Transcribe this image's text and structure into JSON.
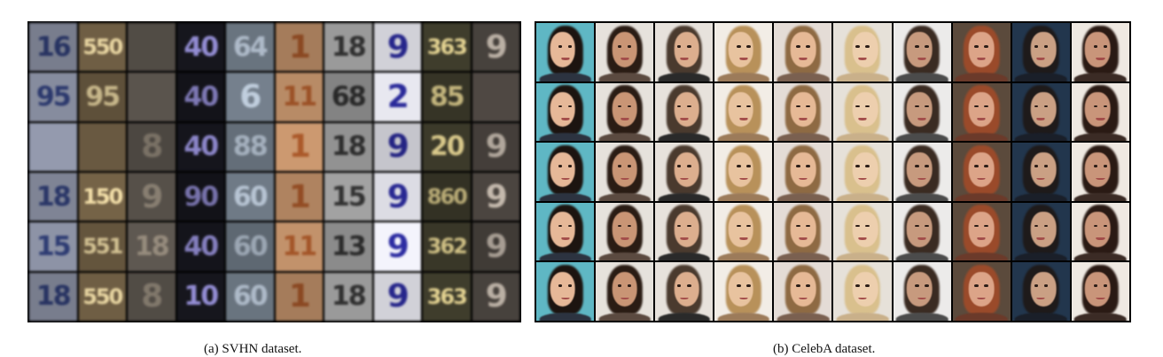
{
  "svhn": {
    "caption": "(a) SVHN dataset.",
    "columns": [
      {
        "bg": "#8d93a6",
        "fg": "#2e3c73",
        "digits": [
          "16",
          "95",
          "",
          "18",
          "15",
          "18"
        ]
      },
      {
        "bg": "#6f5e44",
        "fg": "#ead7a3",
        "digits": [
          "550",
          "95",
          "",
          "150",
          "551",
          "550"
        ]
      },
      {
        "bg": "#5a544d",
        "fg": "#8f8577",
        "digits": [
          "",
          "",
          "8",
          "9",
          "18",
          "8"
        ]
      },
      {
        "bg": "#15151c",
        "fg": "#8c86c9",
        "digits": [
          "40",
          "40",
          "40",
          "90",
          "40",
          "10"
        ]
      },
      {
        "bg": "#6f7a86",
        "fg": "#b7c4d3",
        "digits": [
          "64",
          "6",
          "88",
          "60",
          "60",
          "60"
        ]
      },
      {
        "bg": "#c2926b",
        "fg": "#a35528",
        "digits": [
          "1",
          "11",
          "1",
          "1",
          "11",
          "1"
        ]
      },
      {
        "bg": "#9a9a9a",
        "fg": "#2f2f2f",
        "digits": [
          "18",
          "68",
          "18",
          "15",
          "13",
          "18"
        ]
      },
      {
        "bg": "#e8e8f0",
        "fg": "#2a2a9a",
        "digits": [
          "9",
          "2",
          "9",
          "9",
          "9",
          "9"
        ]
      },
      {
        "bg": "#3c3a2a",
        "fg": "#d9c98b",
        "digits": [
          "363",
          "85",
          "20",
          "860",
          "362",
          "363"
        ]
      },
      {
        "bg": "#4b4540",
        "fg": "#c4b9ad",
        "digits": [
          "9",
          "",
          "9",
          "9",
          "9",
          "9"
        ]
      }
    ]
  },
  "celeba": {
    "caption": "(b) CelebA dataset.",
    "columns": [
      {
        "bg": "#5fb7c4",
        "skin": "#e6b898",
        "hair": "#1c1410",
        "cloth": "#2c3340"
      },
      {
        "bg": "#e6e2dc",
        "skin": "#c99575",
        "hair": "#2a1c14",
        "cloth": "#5b4a40"
      },
      {
        "bg": "#e7e2dc",
        "skin": "#dcae8e",
        "hair": "#4a3a2e",
        "cloth": "#2a2a2a"
      },
      {
        "bg": "#f2ede6",
        "skin": "#e8c39f",
        "hair": "#b8915a",
        "cloth": "#9c7b5a"
      },
      {
        "bg": "#e4dcd6",
        "skin": "#e6b996",
        "hair": "#8e6a43",
        "cloth": "#7a6050"
      },
      {
        "bg": "#e6e1d9",
        "skin": "#edcfae",
        "hair": "#d9c08d",
        "cloth": "#c9b08a"
      },
      {
        "bg": "#ecebea",
        "skin": "#c79a7e",
        "hair": "#3a2b22",
        "cloth": "#4b4b4b"
      },
      {
        "bg": "#5b4a3c",
        "skin": "#dca488",
        "hair": "#9a4a2a",
        "cloth": "#6b3a2a"
      },
      {
        "bg": "#22364d",
        "skin": "#caa084",
        "hair": "#1e1a1a",
        "cloth": "#1a1f29"
      },
      {
        "bg": "#efe9e2",
        "skin": "#c9957a",
        "hair": "#2a1a14",
        "cloth": "#3b2b25"
      }
    ]
  }
}
